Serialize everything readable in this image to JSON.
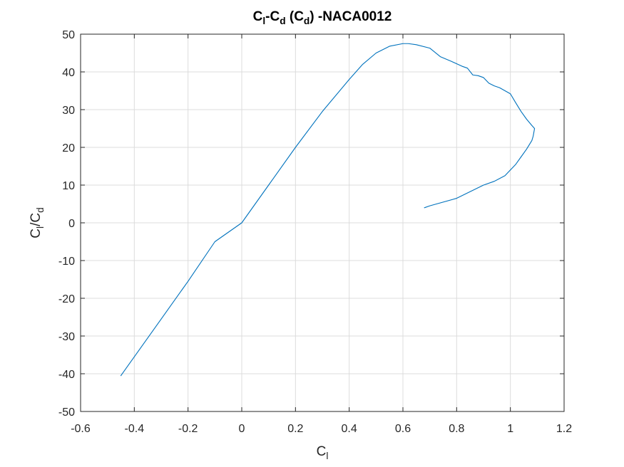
{
  "chart_data": {
    "type": "line",
    "title": {
      "parts": [
        {
          "text": "C",
          "sub": "l"
        },
        {
          "text": "-C",
          "sub": "d"
        },
        {
          "text": " (C",
          "sub": "d"
        },
        {
          "text": ") -NACA0012"
        }
      ]
    },
    "xlabel": {
      "parts": [
        {
          "text": "C",
          "sub": "l"
        }
      ]
    },
    "ylabel": {
      "parts": [
        {
          "text": "C",
          "sub": "l"
        },
        {
          "text": "/C",
          "sub": "d"
        }
      ]
    },
    "xlim": [
      -0.6,
      1.2
    ],
    "ylim": [
      -50,
      50
    ],
    "xticks": [
      -0.6,
      -0.4,
      -0.2,
      0,
      0.2,
      0.4,
      0.6,
      0.8,
      1,
      1.2
    ],
    "xtick_labels": [
      "-0.6",
      "-0.4",
      "-0.2",
      "0",
      "0.2",
      "0.4",
      "0.6",
      "0.8",
      "1",
      "1.2"
    ],
    "yticks": [
      -50,
      -40,
      -30,
      -20,
      -10,
      0,
      10,
      20,
      30,
      40,
      50
    ],
    "ytick_labels": [
      "-50",
      "-40",
      "-30",
      "-20",
      "-10",
      "0",
      "10",
      "20",
      "30",
      "40",
      "50"
    ],
    "grid": true,
    "series": [
      {
        "color": "#0072BD",
        "x": [
          -0.45,
          -0.4,
          -0.3,
          -0.2,
          -0.1,
          0.0,
          0.1,
          0.2,
          0.3,
          0.4,
          0.45,
          0.5,
          0.55,
          0.6,
          0.62,
          0.65,
          0.7,
          0.74,
          0.78,
          0.82,
          0.84,
          0.86,
          0.88,
          0.9,
          0.92,
          0.94,
          0.96,
          0.98,
          1.0,
          1.02,
          1.04,
          1.06,
          1.08,
          1.09,
          1.085,
          1.08,
          1.06,
          1.04,
          1.02,
          1.0,
          0.98,
          0.94,
          0.9,
          0.8,
          0.7,
          0.68
        ],
        "y": [
          -40.5,
          -35.5,
          -25.5,
          -15.5,
          -5.0,
          0.0,
          10.0,
          20.0,
          29.5,
          38.0,
          42.0,
          45.0,
          46.8,
          47.5,
          47.5,
          47.2,
          46.3,
          44.0,
          42.8,
          41.5,
          41.0,
          39.2,
          39.0,
          38.5,
          37.0,
          36.3,
          35.8,
          35.0,
          34.2,
          31.8,
          29.5,
          27.5,
          25.8,
          25.0,
          23.0,
          21.8,
          19.5,
          17.5,
          15.5,
          14.0,
          12.5,
          11.0,
          10.0,
          6.5,
          4.5,
          4.0
        ]
      }
    ]
  }
}
